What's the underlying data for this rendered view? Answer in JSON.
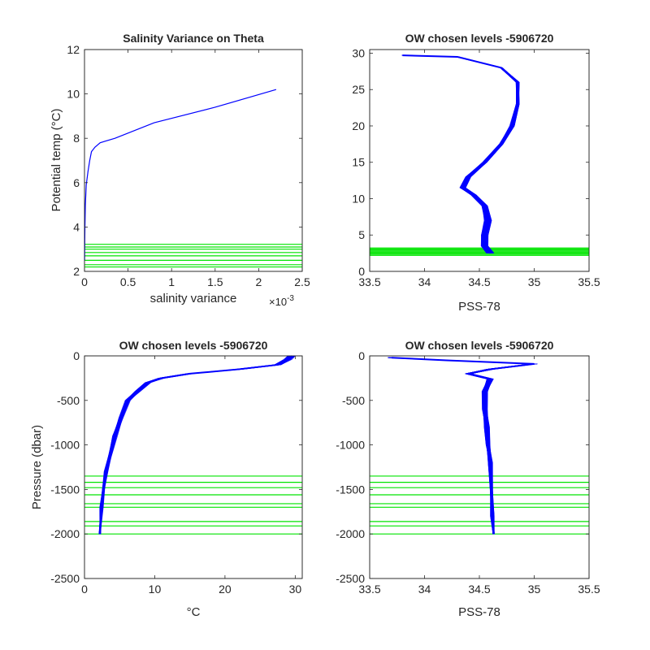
{
  "colors": {
    "profile": "#0000FF",
    "levels": "#00E400",
    "axis": "#262626",
    "background": "#ffffff"
  },
  "chart_data": [
    {
      "type": "line",
      "title": "Salinity Variance on Theta",
      "xlabel": "salinity variance",
      "ylabel": "Potential temp (°C)",
      "x_multiplier": "×10",
      "x_multiplier_exp": "-3",
      "xlim": [
        0,
        0.0025
      ],
      "ylim": [
        2,
        12
      ],
      "xticks": [
        0,
        0.0005,
        0.001,
        0.0015,
        0.002,
        0.0025
      ],
      "xtick_labels": [
        "0",
        "0.5",
        "1",
        "1.5",
        "2",
        "2.5"
      ],
      "yticks": [
        2,
        4,
        6,
        8,
        10,
        12
      ],
      "ytick_labels": [
        "2",
        "4",
        "6",
        "8",
        "10",
        "12"
      ],
      "series": [
        {
          "values": [
            [
              0.0022,
              10.2
            ],
            [
              0.0015,
              9.4
            ],
            [
              0.0008,
              8.7
            ],
            [
              0.00035,
              8.0
            ],
            [
              0.00018,
              7.8
            ],
            [
              0.00012,
              7.6
            ],
            [
              8e-05,
              7.4
            ],
            [
              6e-05,
              7.0
            ],
            [
              4e-05,
              6.5
            ],
            [
              2e-05,
              5.9
            ],
            [
              1e-05,
              5.0
            ],
            [
              5e-06,
              4.0
            ],
            [
              2e-06,
              3.0
            ],
            [
              1e-06,
              2.5
            ]
          ]
        }
      ],
      "level_lines": {
        "orientation": "horizontal",
        "values": [
          2.2,
          2.3,
          2.5,
          2.7,
          2.85,
          3.0,
          3.1,
          3.22
        ]
      }
    },
    {
      "type": "line",
      "title": "OW chosen levels -5906720",
      "xlabel": "PSS-78",
      "ylabel": "",
      "xlim": [
        33.5,
        35.5
      ],
      "ylim": [
        0,
        30.5
      ],
      "xticks": [
        33.5,
        34,
        34.5,
        35,
        35.5
      ],
      "xtick_labels": [
        "33.5",
        "34",
        "34.5",
        "35",
        "35.5"
      ],
      "yticks": [
        0,
        5,
        10,
        15,
        20,
        25,
        30
      ],
      "ytick_labels": [
        "0",
        "5",
        "10",
        "15",
        "20",
        "25",
        "30"
      ],
      "series": [
        {
          "values": [
            [
              34.6,
              2.5
            ],
            [
              34.55,
              3.5
            ],
            [
              34.55,
              5.0
            ],
            [
              34.58,
              7.0
            ],
            [
              34.55,
              9.0
            ],
            [
              34.45,
              10.5
            ],
            [
              34.35,
              11.5
            ],
            [
              34.4,
              13.0
            ],
            [
              34.55,
              15.0
            ],
            [
              34.7,
              17.5
            ],
            [
              34.8,
              20.0
            ],
            [
              34.85,
              23.0
            ],
            [
              34.85,
              26.0
            ],
            [
              34.7,
              28.0
            ],
            [
              34.3,
              29.5
            ],
            [
              33.8,
              29.7
            ]
          ]
        }
      ],
      "band_count": 90,
      "level_lines": {
        "orientation": "horizontal",
        "values": [
          2.2,
          2.35,
          2.5,
          2.65,
          2.8,
          2.95,
          3.1,
          3.22
        ]
      }
    },
    {
      "type": "line",
      "title": "OW chosen levels -5906720",
      "xlabel": "°C",
      "ylabel": "Pressure (dbar)",
      "xlim": [
        0,
        31
      ],
      "ylim": [
        -2500,
        0
      ],
      "xticks": [
        0,
        10,
        20,
        30
      ],
      "xtick_labels": [
        "0",
        "10",
        "20",
        "30"
      ],
      "yticks": [
        -2500,
        -2000,
        -1500,
        -1000,
        -500,
        0
      ],
      "ytick_labels": [
        "-2500",
        "-2000",
        "-1500",
        "-1000",
        "-500",
        "0"
      ],
      "series": [
        {
          "values": [
            [
              29.5,
              0
            ],
            [
              29,
              -40
            ],
            [
              27.5,
              -100
            ],
            [
              22,
              -150
            ],
            [
              15,
              -200
            ],
            [
              11,
              -250
            ],
            [
              9,
              -300
            ],
            [
              7.5,
              -400
            ],
            [
              6.2,
              -500
            ],
            [
              5.2,
              -700
            ],
            [
              4.3,
              -900
            ],
            [
              3.7,
              -1100
            ],
            [
              3.1,
              -1300
            ],
            [
              2.7,
              -1500
            ],
            [
              2.4,
              -1700
            ],
            [
              2.2,
              -2000
            ]
          ]
        }
      ],
      "band_count": 60,
      "level_lines": {
        "orientation": "horizontal",
        "values": [
          -1350,
          -1420,
          -1480,
          -1560,
          -1660,
          -1700,
          -1860,
          -1910,
          -2000
        ]
      }
    },
    {
      "type": "line",
      "title": "OW chosen levels -5906720",
      "xlabel": "PSS-78",
      "ylabel": "",
      "xlim": [
        33.5,
        35.5
      ],
      "ylim": [
        -2500,
        0
      ],
      "xticks": [
        33.5,
        34,
        34.5,
        35,
        35.5
      ],
      "xtick_labels": [
        "33.5",
        "34",
        "34.5",
        "35",
        "35.5"
      ],
      "yticks": [
        -2500,
        -2000,
        -1500,
        -1000,
        -500,
        0
      ],
      "ytick_labels": [
        "-2500",
        "-2000",
        "-1500",
        "-1000",
        "-500",
        "0"
      ],
      "series": [
        {
          "values": [
            [
              33.7,
              -20
            ],
            [
              34.2,
              -50
            ],
            [
              35.0,
              -90
            ],
            [
              34.6,
              -150
            ],
            [
              34.4,
              -200
            ],
            [
              34.6,
              -260
            ],
            [
              34.55,
              -400
            ],
            [
              34.55,
              -600
            ],
            [
              34.57,
              -800
            ],
            [
              34.58,
              -1000
            ],
            [
              34.6,
              -1200
            ],
            [
              34.61,
              -1500
            ],
            [
              34.62,
              -1800
            ],
            [
              34.63,
              -2000
            ]
          ]
        }
      ],
      "band_count": 70,
      "level_lines": {
        "orientation": "horizontal",
        "values": [
          -1350,
          -1420,
          -1480,
          -1560,
          -1660,
          -1700,
          -1860,
          -1910,
          -2000
        ]
      }
    }
  ]
}
